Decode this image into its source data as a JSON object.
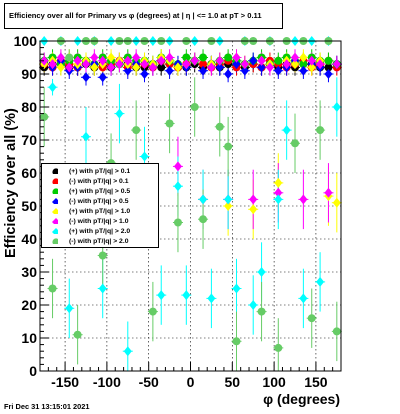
{
  "title": "Efficiency over all for Primary vs φ (degrees) at |  η | <= 1.0 at pT > 0.11",
  "datestamp": "Fri Dec 31 13:15:01 2021",
  "chart_data": {
    "type": "scatter",
    "xlabel": "φ (degrees)",
    "ylabel": "Efficiency over all (%)",
    "xlim": [
      -180,
      180
    ],
    "ylim": [
      0,
      100
    ],
    "xticks": [
      -150,
      -100,
      -50,
      0,
      50,
      100,
      150
    ],
    "yticks": [
      0,
      10,
      20,
      30,
      40,
      50,
      60,
      70,
      80,
      90,
      100
    ],
    "grid": true,
    "legend_position": "left-middle",
    "series": [
      {
        "name": "(+) with pT/|q| > 0.1",
        "color": "#000000",
        "marker": "circle",
        "x": [
          -175,
          -165,
          -155,
          -145,
          -135,
          -125,
          -115,
          -105,
          -95,
          -85,
          -75,
          -65,
          -55,
          -45,
          -35,
          -25,
          -15,
          -5,
          5,
          15,
          25,
          35,
          45,
          55,
          65,
          75,
          85,
          95,
          105,
          115,
          125,
          135,
          145,
          155,
          165,
          175
        ],
        "y": [
          92,
          93,
          93,
          92,
          92,
          93,
          92,
          93,
          92,
          93,
          93,
          92,
          92,
          93,
          92,
          93,
          92,
          92,
          93,
          92,
          93,
          92,
          93,
          93,
          92,
          93,
          92,
          93,
          92,
          93,
          92,
          93,
          93,
          92,
          92,
          93
        ]
      },
      {
        "name": "(-) with pT/|q| > 0.1",
        "color": "#ff0000",
        "marker": "circle",
        "x": [
          -175,
          -165,
          -155,
          -145,
          -135,
          -125,
          -115,
          -105,
          -95,
          -85,
          -75,
          -65,
          -55,
          -45,
          -35,
          -25,
          -15,
          -5,
          5,
          15,
          25,
          35,
          45,
          55,
          65,
          75,
          85,
          95,
          105,
          115,
          125,
          135,
          145,
          155,
          165,
          175
        ],
        "y": [
          93,
          92,
          94,
          93,
          92,
          94,
          93,
          92,
          93,
          94,
          92,
          93,
          93,
          92,
          94,
          93,
          92,
          93,
          94,
          93,
          92,
          93,
          94,
          92,
          93,
          93,
          92,
          94,
          93,
          92,
          93,
          94,
          92,
          93,
          94,
          92
        ]
      },
      {
        "name": "(+) with pT/|q| > 0.5",
        "color": "#00cc00",
        "marker": "circle",
        "x": [
          -175,
          -165,
          -155,
          -145,
          -135,
          -125,
          -115,
          -105,
          -95,
          -85,
          -75,
          -65,
          -55,
          -45,
          -35,
          -25,
          -15,
          -5,
          5,
          15,
          25,
          35,
          45,
          55,
          65,
          75,
          85,
          95,
          105,
          115,
          125,
          135,
          145,
          155,
          165,
          175
        ],
        "y": [
          94,
          95,
          93,
          94,
          95,
          94,
          93,
          95,
          94,
          93,
          95,
          94,
          94,
          93,
          95,
          94,
          93,
          95,
          94,
          95,
          93,
          94,
          95,
          94,
          93,
          94,
          95,
          93,
          94,
          95,
          94,
          93,
          95,
          94,
          94,
          93
        ]
      },
      {
        "name": "(-) with pT/|q| > 0.5",
        "color": "#0000ff",
        "marker": "diamond",
        "x": [
          -175,
          -165,
          -155,
          -145,
          -135,
          -125,
          -115,
          -105,
          -95,
          -85,
          -75,
          -65,
          -55,
          -45,
          -35,
          -25,
          -15,
          -5,
          5,
          15,
          25,
          35,
          45,
          55,
          65,
          75,
          85,
          95,
          105,
          115,
          125,
          135,
          145,
          155,
          165,
          175
        ],
        "y": [
          93,
          92,
          94,
          91,
          92,
          89,
          93,
          89,
          92,
          94,
          91,
          93,
          90,
          92,
          94,
          91,
          93,
          92,
          94,
          91,
          93,
          92,
          90,
          93,
          91,
          94,
          92,
          93,
          91,
          92,
          94,
          91,
          93,
          92,
          90,
          93
        ]
      },
      {
        "name": "(+) with pT/|q| > 1.0",
        "color": "#ffff00",
        "marker": "diamond",
        "x": [
          -175,
          -165,
          -155,
          -145,
          -135,
          -125,
          -115,
          -105,
          -95,
          -85,
          -75,
          -65,
          -55,
          -45,
          -35,
          -25,
          -15,
          -5,
          5,
          15,
          25,
          35,
          45,
          55,
          65,
          75,
          85,
          95,
          105,
          115,
          125,
          135,
          145,
          155,
          165,
          175
        ],
        "y": [
          93,
          94,
          92,
          95,
          93,
          94,
          92,
          93,
          95,
          94,
          93,
          92,
          94,
          93,
          95,
          94,
          92,
          93,
          94,
          52,
          93,
          94,
          50,
          95,
          93,
          49,
          94,
          93,
          57,
          94,
          93,
          95,
          92,
          94,
          53,
          51
        ]
      },
      {
        "name": "(-) with pT/|q| > 1.0",
        "color": "#ff00ff",
        "marker": "diamond",
        "x": [
          -175,
          -165,
          -155,
          -145,
          -135,
          -125,
          -115,
          -105,
          -95,
          -85,
          -75,
          -65,
          -55,
          -45,
          -35,
          -25,
          -15,
          -5,
          5,
          15,
          25,
          35,
          45,
          55,
          65,
          75,
          85,
          95,
          105,
          115,
          125,
          135,
          145,
          155,
          165,
          175
        ],
        "y": [
          94,
          93,
          95,
          92,
          94,
          93,
          95,
          94,
          92,
          93,
          94,
          95,
          93,
          92,
          94,
          95,
          62,
          93,
          94,
          52,
          92,
          94,
          52,
          95,
          93,
          52,
          94,
          92,
          54,
          93,
          95,
          52,
          94,
          93,
          54,
          93
        ]
      },
      {
        "name": "(+) with pT/|q| > 2.0",
        "color": "#00ffff",
        "marker": "diamond",
        "x": [
          -175,
          -165,
          -155,
          -145,
          -135,
          -125,
          -115,
          -105,
          -95,
          -85,
          -75,
          -65,
          -55,
          -45,
          -35,
          -25,
          -15,
          -5,
          5,
          15,
          25,
          35,
          45,
          55,
          65,
          75,
          85,
          95,
          105,
          115,
          125,
          135,
          145,
          155,
          165,
          175
        ],
        "y": [
          100,
          86,
          100,
          19,
          100,
          71,
          100,
          25,
          100,
          78,
          6,
          100,
          65,
          100,
          23,
          100,
          56,
          23,
          100,
          52,
          22,
          100,
          52,
          25,
          100,
          20,
          30,
          100,
          52,
          73,
          100,
          22,
          100,
          27,
          100,
          80
        ]
      },
      {
        "name": "(-) with pT/|q| > 2.0",
        "color": "#66cc66",
        "marker": "circle",
        "x": [
          -175,
          -165,
          -155,
          -145,
          -135,
          -125,
          -115,
          -105,
          -95,
          -85,
          -75,
          -65,
          -55,
          -45,
          -35,
          -25,
          -15,
          -5,
          5,
          15,
          25,
          35,
          45,
          55,
          65,
          75,
          85,
          95,
          105,
          115,
          125,
          135,
          145,
          155,
          165,
          175
        ],
        "y": [
          77,
          25,
          100,
          95,
          11,
          100,
          100,
          35,
          63,
          100,
          100,
          73,
          100,
          18,
          100,
          75,
          45,
          100,
          80,
          46,
          100,
          74,
          68,
          9,
          100,
          100,
          18,
          100,
          7,
          100,
          69,
          100,
          16,
          73,
          100,
          12
        ]
      }
    ]
  }
}
